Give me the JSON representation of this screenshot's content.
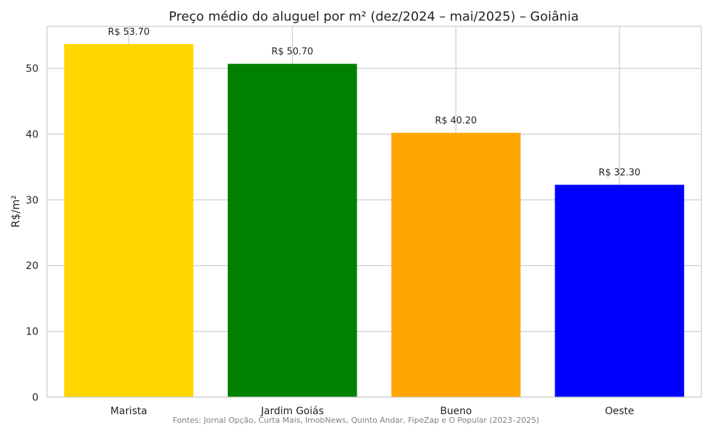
{
  "chart_data": {
    "type": "bar",
    "title": "Preço médio do aluguel por m² (dez/2024 – mai/2025) – Goiânia",
    "xlabel": "",
    "ylabel": "R$/m²",
    "categories": [
      "Marista",
      "Jardim Goiás",
      "Bueno",
      "Oeste"
    ],
    "values": [
      53.7,
      50.7,
      40.2,
      32.3
    ],
    "data_labels": [
      "R$ 53.70",
      "R$ 50.70",
      "R$ 40.20",
      "R$ 32.30"
    ],
    "colors": [
      "#FFD700",
      "#008000",
      "#FFA500",
      "#0000FF"
    ],
    "ylim": [
      0,
      56.4
    ],
    "yticks": [
      0,
      10,
      20,
      30,
      40,
      50
    ],
    "grid": true,
    "legend": "none"
  },
  "source_note": "Fontes: Jornal Opção, Curta Mais, ImobNews, Quinto Andar, FipeZap e O Popular (2023–2025)"
}
